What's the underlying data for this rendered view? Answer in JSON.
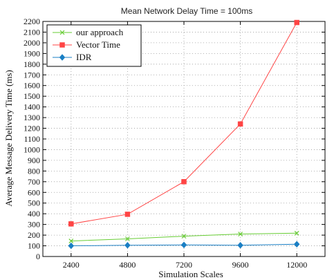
{
  "chart_data": {
    "type": "line",
    "title": "Mean Network Delay Time = 100ms",
    "xlabel": "Simulation Scales",
    "ylabel": "Average Message Delivery Time (ms)",
    "categories": [
      "2400",
      "4800",
      "7200",
      "9600",
      "12000"
    ],
    "xlim": [
      1200,
      13200
    ],
    "ylim": [
      0,
      2200
    ],
    "ytick_step": 100,
    "grid": true,
    "legend_position": "top-left",
    "series": [
      {
        "name": "our approach",
        "values": [
          145,
          165,
          190,
          210,
          218
        ],
        "color": "#66cc33",
        "marker": "x"
      },
      {
        "name": "Vector Time",
        "values": [
          305,
          395,
          700,
          1240,
          2190
        ],
        "color": "#ff4444",
        "marker": "square"
      },
      {
        "name": "IDR",
        "values": [
          100,
          105,
          108,
          105,
          115
        ],
        "color": "#1a7fc4",
        "marker": "diamond"
      }
    ]
  }
}
